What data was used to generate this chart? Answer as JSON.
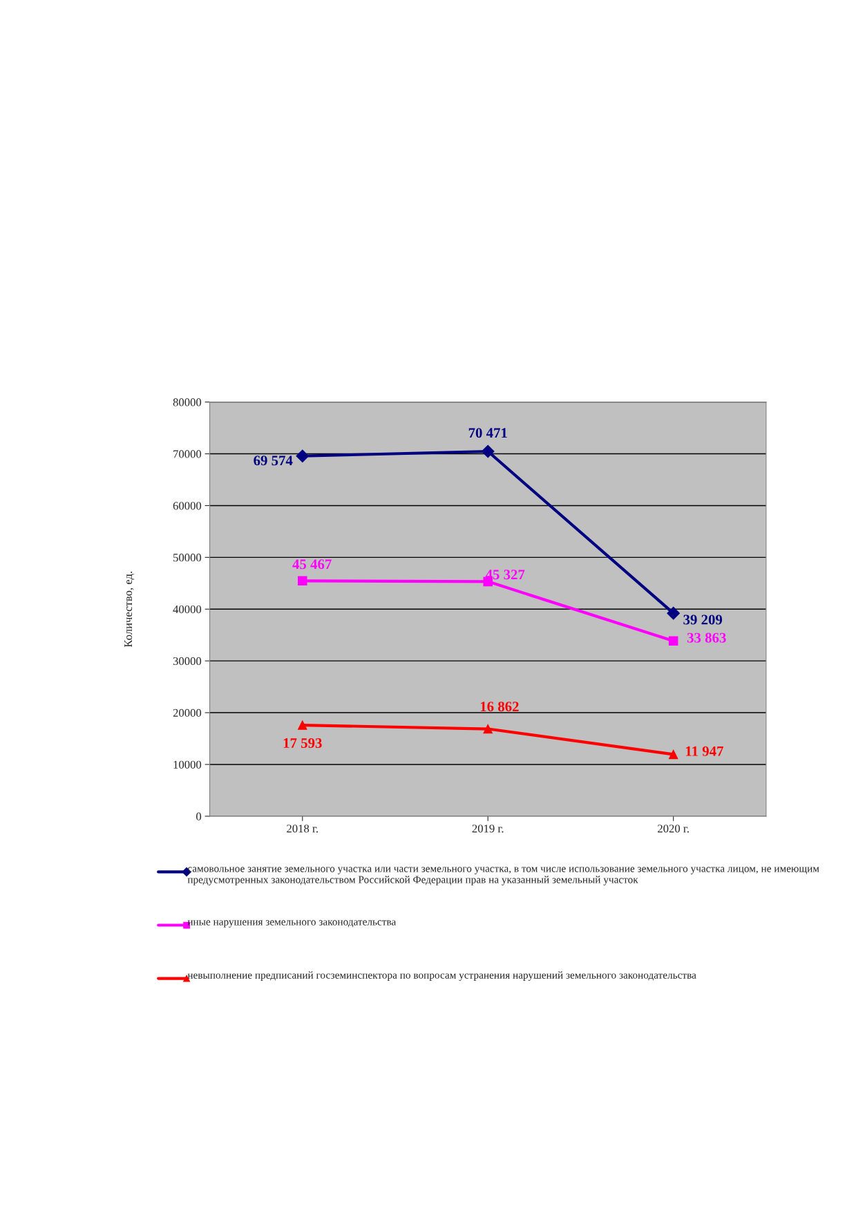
{
  "chart_data": {
    "type": "line",
    "ylabel": "Количество, ед.",
    "categories": [
      "2018 г.",
      "2019 г.",
      "2020 г."
    ],
    "series": [
      {
        "name": "самовольное занятие земельного участка или части земельного участка, в том числе использование земельного участка лицом, не имеющим предусмотренных законодательством Российской Федерации прав на указанный земельный участок",
        "color": "#000080",
        "values": [
          69574,
          70471,
          39209
        ],
        "value_labels": [
          "69 574",
          "70 471",
          "39 209"
        ],
        "marker": "diamond"
      },
      {
        "name": "иные нарушения земельного законодательства",
        "color": "#ff00ff",
        "values": [
          45467,
          45327,
          33863
        ],
        "value_labels": [
          "45 467",
          "45 327",
          "33 863"
        ],
        "marker": "square"
      },
      {
        "name": "невыполнение предписаний госземинспектора по вопросам устранения нарушений земельного законодательства",
        "color": "#ff0000",
        "values": [
          17593,
          16862,
          11947
        ],
        "value_labels": [
          "17 593",
          "16 862",
          "11 947"
        ],
        "marker": "triangle"
      }
    ],
    "ylim": [
      0,
      80000
    ],
    "yticks": [
      0,
      10000,
      20000,
      30000,
      40000,
      50000,
      60000,
      70000,
      80000
    ],
    "grid": "y",
    "legend": "bottom",
    "line_style": "solid"
  }
}
